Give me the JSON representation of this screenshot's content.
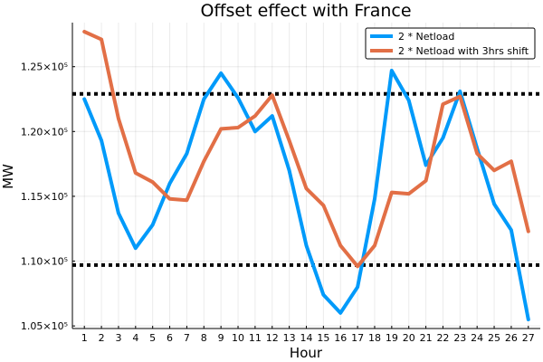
{
  "chart_data": {
    "type": "line",
    "title": "Offset effect with France",
    "xlabel": "Hour",
    "ylabel": "MW",
    "x": [
      1,
      2,
      3,
      4,
      5,
      6,
      7,
      8,
      9,
      10,
      11,
      12,
      13,
      14,
      15,
      16,
      17,
      18,
      19,
      20,
      21,
      22,
      23,
      24,
      25,
      26,
      27
    ],
    "xlim": [
      0.3,
      27.7
    ],
    "ylim": [
      104800,
      128400
    ],
    "yticks": [
      105000,
      110000,
      115000,
      120000,
      125000
    ],
    "ytick_labels": [
      "1.05×10⁵",
      "1.10×10⁵",
      "1.15×10⁵",
      "1.20×10⁵",
      "1.25×10⁵"
    ],
    "grid": true,
    "legend_position": "top-right",
    "series": [
      {
        "name": "2 * Netload",
        "color": "#009AFA",
        "values": [
          122500,
          119300,
          113700,
          111000,
          112800,
          116000,
          118300,
          122500,
          124500,
          122600,
          120000,
          121200,
          117000,
          111200,
          107400,
          106000,
          108000,
          114800,
          124700,
          122400,
          117400,
          119500,
          123100,
          118700,
          114400,
          112400,
          105500
        ]
      },
      {
        "name": "2 * Netload with 3hrs shift",
        "color": "#E26F46",
        "values": [
          127700,
          127100,
          121000,
          116800,
          116100,
          114800,
          114700,
          117700,
          120200,
          120300,
          121200,
          122800,
          119300,
          115600,
          114300,
          111200,
          109600,
          111200,
          115300,
          115200,
          116200,
          122100,
          122700,
          118300,
          117000,
          117700,
          112300
        ]
      }
    ],
    "reference_lines": [
      {
        "y": 122900,
        "color": "#000000",
        "style": "dotted"
      },
      {
        "y": 109700,
        "color": "#000000",
        "style": "dotted"
      }
    ]
  }
}
